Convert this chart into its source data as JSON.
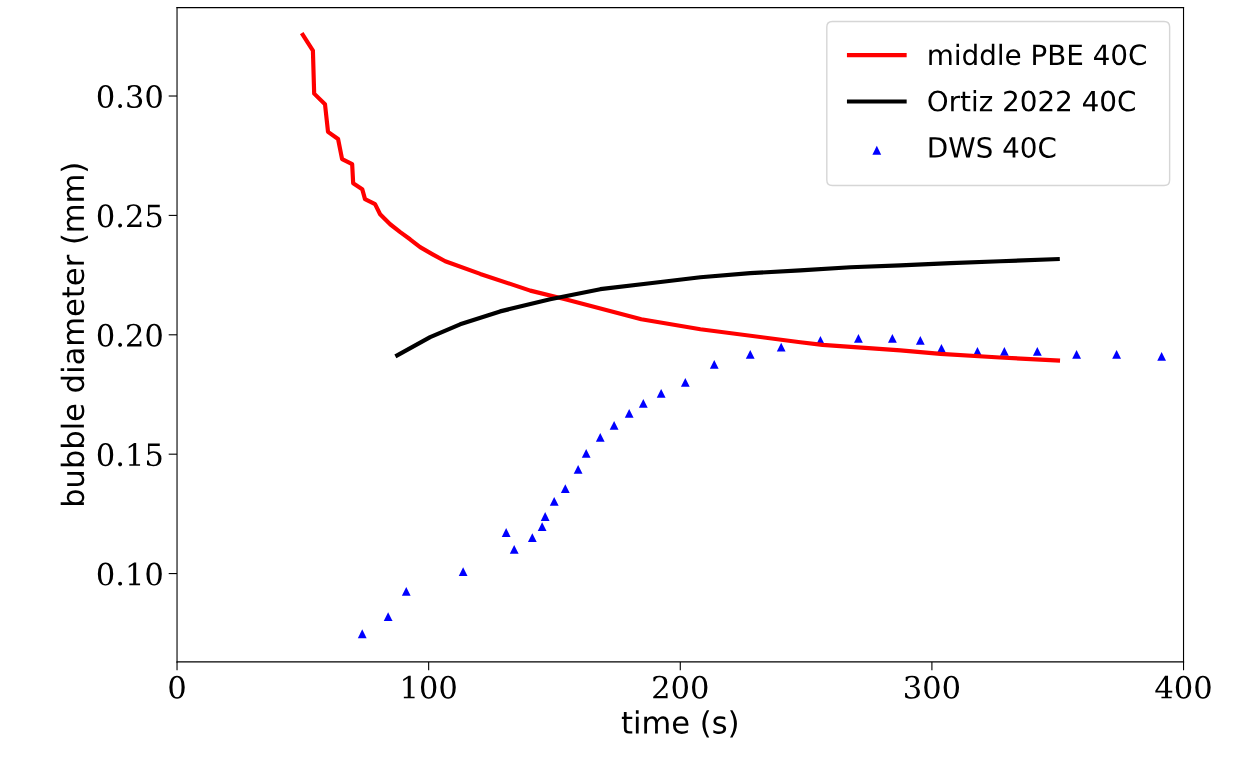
{
  "chart_data": {
    "type": "line",
    "xlabel": "time (s)",
    "ylabel": "bubble diameter (mm)",
    "xlim": [
      0,
      400
    ],
    "xticks": [
      0,
      100,
      200,
      300,
      400
    ],
    "ylim": [
      0.063,
      0.337
    ],
    "yticks": [
      {
        "value": 0.1,
        "label": "0.10"
      },
      {
        "value": 0.15,
        "label": "0.15"
      },
      {
        "value": 0.2,
        "label": "0.20"
      },
      {
        "value": 0.25,
        "label": "0.25"
      },
      {
        "value": 0.3,
        "label": "0.30"
      }
    ],
    "grid": false,
    "legend": "top right",
    "series": [
      {
        "name": "middle PBE 40C",
        "color": "#ff0000",
        "marker": "none",
        "line_style": "solid",
        "x": [
          50,
          54,
          54.5,
          58.8,
          60,
          64,
          65.6,
          69.6,
          70,
          73.6,
          74.7,
          78.7,
          80.7,
          84.7,
          88.7,
          92.6,
          96.6,
          101.4,
          106.6,
          120.5,
          140.4,
          154.3,
          184.5,
          208,
          247.7,
          256.5,
          287.5,
          303.4,
          327,
          350.1
        ],
        "values": [
          0.3256,
          0.319,
          0.301,
          0.2966,
          0.285,
          0.282,
          0.2736,
          0.2715,
          0.2635,
          0.261,
          0.2568,
          0.2547,
          0.2505,
          0.2463,
          0.243,
          0.24,
          0.2367,
          0.2338,
          0.2308,
          0.2255,
          0.2185,
          0.2149,
          0.2065,
          0.2023,
          0.1969,
          0.1958,
          0.1935,
          0.192,
          0.1905,
          0.1892
        ]
      },
      {
        "name": "Ortiz 2022 40C",
        "color": "#000000",
        "marker": "none",
        "line_style": "solid",
        "x": [
          87.5,
          100.6,
          112.5,
          128.4,
          148.3,
          168.2,
          188,
          208,
          227.8,
          247.7,
          267.6,
          287.5,
          307.4,
          327.2,
          350
        ],
        "values": [
          0.1914,
          0.199,
          0.2044,
          0.2098,
          0.2149,
          0.2191,
          0.2216,
          0.2241,
          0.2258,
          0.227,
          0.2283,
          0.2291,
          0.23,
          0.2308,
          0.2317
        ]
      },
      {
        "name": "DWS 40C",
        "color": "#0000ff",
        "type": "scatter",
        "marker": "triangle",
        "x": [
          73.6,
          83.9,
          91.1,
          113.7,
          130.8,
          134,
          141.2,
          145.1,
          146.3,
          149.9,
          154.3,
          159.4,
          162.6,
          168.2,
          173.7,
          179.7,
          185.3,
          192.4,
          202,
          213.5,
          227.8,
          240.1,
          255.7,
          270.8,
          284.3,
          295.4,
          303.8,
          318.1,
          328.8,
          341.9,
          357.5,
          373.4,
          391.3
        ],
        "values": [
          0.0748,
          0.082,
          0.0925,
          0.1008,
          0.1172,
          0.1101,
          0.1151,
          0.1197,
          0.1239,
          0.1302,
          0.1356,
          0.1436,
          0.1503,
          0.157,
          0.1621,
          0.1671,
          0.1713,
          0.1755,
          0.1801,
          0.1876,
          0.1918,
          0.1948,
          0.1977,
          0.1985,
          0.1985,
          0.1977,
          0.1943,
          0.1931,
          0.1931,
          0.1931,
          0.1918,
          0.1918,
          0.191
        ]
      }
    ]
  }
}
